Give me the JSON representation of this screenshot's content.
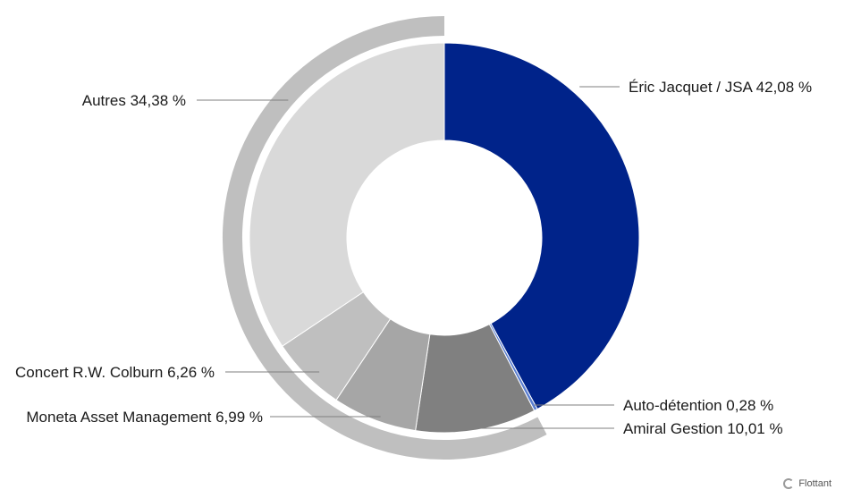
{
  "chart_data": {
    "type": "pie",
    "title": "",
    "slices": [
      {
        "label": "Éric Jacquet / JSA 42,08 %",
        "value": 42.08,
        "color": "#00238a"
      },
      {
        "label": "Auto-détention 0,28 %",
        "value": 0.28,
        "color": "#5b7fd1"
      },
      {
        "label": "Amiral Gestion 10,01 %",
        "value": 10.01,
        "color": "#808080"
      },
      {
        "label": "Moneta Asset Management 6,99 %",
        "value": 6.99,
        "color": "#a6a6a6"
      },
      {
        "label": "Concert R.W. Colburn 6,26 %",
        "value": 6.26,
        "color": "#bfbfbf"
      },
      {
        "label": "Autres 34,38 %",
        "value": 34.38,
        "color": "#d9d9d9"
      }
    ],
    "outer_arc": {
      "start_value": 42.36,
      "end_value": 100,
      "color": "#bfbfbf"
    }
  },
  "badge": {
    "label": "Flottant",
    "icon": "float-icon"
  }
}
